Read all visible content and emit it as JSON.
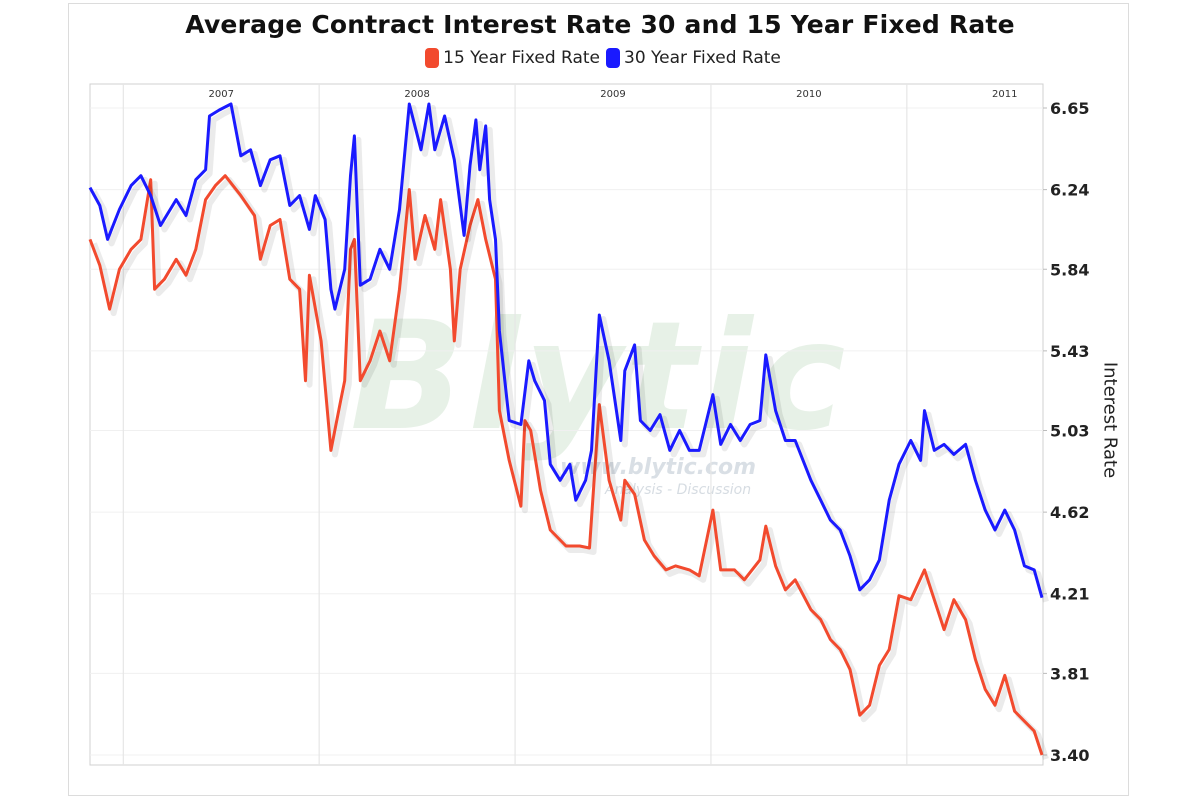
{
  "chart_data": {
    "type": "line",
    "title": "Average Contract Interest Rate 30 and 15 Year Fixed Rate",
    "xlabel": "",
    "ylabel": "Interest Rate",
    "xlim": [
      2006.83,
      2011.69
    ],
    "ylim": [
      3.4,
      6.65
    ],
    "x_tick_labels": [
      "2007",
      "2008",
      "2009",
      "2010",
      "2011"
    ],
    "y_tick_labels": [
      "6.65",
      "6.24",
      "5.84",
      "5.43",
      "5.03",
      "4.62",
      "4.21",
      "3.81",
      "3.40"
    ],
    "grid": true,
    "legend_position": "top-center",
    "series": [
      {
        "name": "15 Year Fixed Rate",
        "color": "#f24a2e",
        "x": [
          2006.83,
          2006.88,
          2006.93,
          2006.98,
          2007.04,
          2007.09,
          2007.14,
          2007.16,
          2007.21,
          2007.27,
          2007.32,
          2007.37,
          2007.42,
          2007.47,
          2007.52,
          2007.6,
          2007.67,
          2007.7,
          2007.75,
          2007.8,
          2007.85,
          2007.9,
          2007.93,
          2007.95,
          2008.01,
          2008.06,
          2008.11,
          2008.13,
          2008.16,
          2008.18,
          2008.21,
          2008.26,
          2008.31,
          2008.36,
          2008.41,
          2008.46,
          2008.49,
          2008.54,
          2008.59,
          2008.62,
          2008.67,
          2008.69,
          2008.72,
          2008.77,
          2008.81,
          2008.85,
          2008.9,
          2008.92,
          2008.97,
          2009.03,
          2009.05,
          2009.08,
          2009.13,
          2009.18,
          2009.26,
          2009.33,
          2009.38,
          2009.43,
          2009.48,
          2009.54,
          2009.56,
          2009.61,
          2009.66,
          2009.71,
          2009.77,
          2009.82,
          2009.89,
          2009.94,
          2010.01,
          2010.05,
          2010.12,
          2010.17,
          2010.25,
          2010.28,
          2010.33,
          2010.38,
          2010.43,
          2010.51,
          2010.56,
          2010.61,
          2010.66,
          2010.71,
          2010.76,
          2010.81,
          2010.86,
          2010.91,
          2010.96,
          2011.02,
          2011.09,
          2011.14,
          2011.19,
          2011.24,
          2011.3,
          2011.35,
          2011.4,
          2011.45,
          2011.5,
          2011.55,
          2011.6,
          2011.65,
          2011.69
        ],
        "values": [
          5.99,
          5.86,
          5.64,
          5.84,
          5.94,
          5.99,
          6.29,
          5.74,
          5.79,
          5.89,
          5.81,
          5.94,
          6.19,
          6.26,
          6.31,
          6.21,
          6.11,
          5.89,
          6.06,
          6.09,
          5.79,
          5.74,
          5.28,
          5.81,
          5.48,
          4.93,
          5.18,
          5.28,
          5.94,
          5.99,
          5.28,
          5.38,
          5.53,
          5.38,
          5.74,
          6.24,
          5.89,
          6.11,
          5.94,
          6.19,
          5.84,
          5.48,
          5.84,
          6.06,
          6.19,
          5.99,
          5.79,
          5.13,
          4.88,
          4.65,
          5.08,
          5.03,
          4.73,
          4.53,
          4.45,
          4.45,
          4.44,
          5.16,
          4.78,
          4.58,
          4.78,
          4.71,
          4.48,
          4.4,
          4.33,
          4.35,
          4.33,
          4.3,
          4.63,
          4.33,
          4.33,
          4.28,
          4.38,
          4.55,
          4.35,
          4.23,
          4.28,
          4.13,
          4.08,
          3.98,
          3.93,
          3.83,
          3.6,
          3.65,
          3.85,
          3.93,
          4.2,
          4.18,
          4.33,
          4.18,
          4.03,
          4.18,
          4.08,
          3.88,
          3.73,
          3.65,
          3.8,
          3.62,
          3.57,
          3.52,
          3.4
        ]
      },
      {
        "name": "30 Year Fixed Rate",
        "color": "#1a1aff",
        "x": [
          2006.83,
          2006.88,
          2006.92,
          2006.98,
          2007.04,
          2007.09,
          2007.14,
          2007.19,
          2007.27,
          2007.32,
          2007.37,
          2007.42,
          2007.44,
          2007.49,
          2007.55,
          2007.6,
          2007.65,
          2007.7,
          2007.75,
          2007.8,
          2007.85,
          2007.9,
          2007.95,
          2007.98,
          2008.03,
          2008.06,
          2008.08,
          2008.13,
          2008.16,
          2008.18,
          2008.21,
          2008.26,
          2008.31,
          2008.36,
          2008.41,
          2008.46,
          2008.52,
          2008.56,
          2008.59,
          2008.64,
          2008.69,
          2008.74,
          2008.77,
          2008.8,
          2008.82,
          2008.85,
          2008.87,
          2008.9,
          2008.92,
          2008.97,
          2009.03,
          2009.07,
          2009.1,
          2009.15,
          2009.18,
          2009.23,
          2009.28,
          2009.31,
          2009.36,
          2009.39,
          2009.43,
          2009.48,
          2009.54,
          2009.56,
          2009.61,
          2009.64,
          2009.69,
          2009.74,
          2009.79,
          2009.84,
          2009.89,
          2009.94,
          2010.01,
          2010.05,
          2010.1,
          2010.15,
          2010.2,
          2010.25,
          2010.28,
          2010.33,
          2010.38,
          2010.43,
          2010.51,
          2010.56,
          2010.61,
          2010.66,
          2010.71,
          2010.76,
          2010.81,
          2010.86,
          2010.91,
          2010.96,
          2011.02,
          2011.07,
          2011.09,
          2011.14,
          2011.19,
          2011.24,
          2011.3,
          2011.35,
          2011.4,
          2011.45,
          2011.5,
          2011.55,
          2011.6,
          2011.65,
          2011.69
        ],
        "values": [
          6.25,
          6.16,
          5.99,
          6.14,
          6.26,
          6.31,
          6.21,
          6.06,
          6.19,
          6.11,
          6.29,
          6.34,
          6.61,
          6.64,
          6.67,
          6.41,
          6.44,
          6.26,
          6.39,
          6.41,
          6.16,
          6.21,
          6.04,
          6.21,
          6.09,
          5.74,
          5.64,
          5.84,
          6.31,
          6.51,
          5.76,
          5.79,
          5.94,
          5.84,
          6.14,
          6.67,
          6.44,
          6.67,
          6.44,
          6.61,
          6.39,
          6.01,
          6.36,
          6.59,
          6.34,
          6.56,
          6.19,
          5.99,
          5.53,
          5.08,
          5.06,
          5.38,
          5.28,
          5.18,
          4.86,
          4.78,
          4.86,
          4.68,
          4.78,
          4.93,
          5.61,
          5.38,
          4.98,
          5.33,
          5.46,
          5.08,
          5.03,
          5.11,
          4.93,
          5.03,
          4.93,
          4.93,
          5.21,
          4.96,
          5.06,
          4.98,
          5.06,
          5.08,
          5.41,
          5.13,
          4.98,
          4.98,
          4.78,
          4.68,
          4.58,
          4.53,
          4.4,
          4.23,
          4.28,
          4.38,
          4.68,
          4.86,
          4.98,
          4.88,
          5.13,
          4.93,
          4.96,
          4.91,
          4.96,
          4.78,
          4.63,
          4.53,
          4.63,
          4.53,
          4.35,
          4.33,
          4.19
        ]
      }
    ],
    "watermark": {
      "logo": "Blytic",
      "url": "www.blytic.com",
      "tagline": "Analysis - Discussion"
    }
  }
}
